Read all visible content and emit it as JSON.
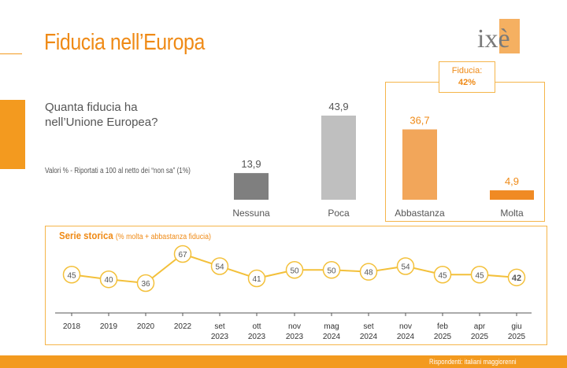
{
  "header": {
    "title": "Fiducia nell’Europa",
    "logo_text": "ixè"
  },
  "question": "Quanta fiducia ha\nnell’Unione Europea?",
  "note": "Valori % - Riportati a 100 al netto dei “non sa” (1%)",
  "fiducia": {
    "label": "Fiducia:",
    "value": "42%"
  },
  "chart_data": [
    {
      "type": "bar",
      "categories": [
        "Nessuna",
        "Poca",
        "Abbastanza",
        "Molta"
      ],
      "values": [
        13.9,
        43.9,
        36.7,
        4.9
      ],
      "value_labels": [
        "13,9",
        "43,9",
        "36,7",
        "4,9"
      ],
      "colors": [
        "#7f7f7f",
        "#bfbfbf",
        "#f2a65a",
        "#f08a24"
      ],
      "label_colors": [
        "#555555",
        "#555555",
        "#ef8a16",
        "#ef8a16"
      ],
      "ylim": [
        0,
        43.9
      ]
    },
    {
      "type": "line",
      "title": "Serie storica",
      "subtitle": "(% molta + abbastanza fiducia)",
      "x": [
        "2018",
        "2019",
        "2020",
        "2022",
        "set 2023",
        "ott 2023",
        "nov 2023",
        "mag 2024",
        "set 2024",
        "nov 2024",
        "feb 2025",
        "apr 2025",
        "giu 2025"
      ],
      "values": [
        45,
        40,
        36,
        67,
        54,
        41,
        50,
        50,
        48,
        54,
        45,
        45,
        42
      ],
      "line_color": "#f3c03a",
      "ylim": [
        30,
        70
      ]
    }
  ],
  "footer": {
    "source": "Rispondenti: italiani maggiorenni"
  }
}
